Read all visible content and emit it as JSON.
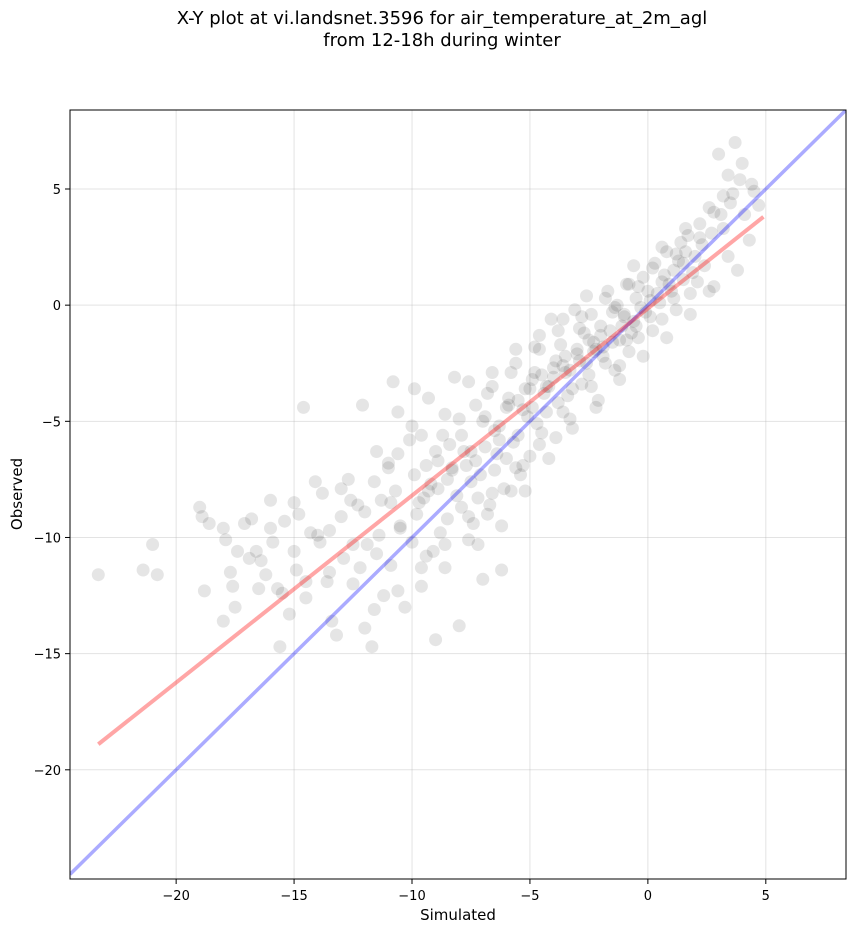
{
  "chart_data": {
    "type": "scatter",
    "title_line1": "X-Y plot at vi.landsnet.3596 for air_temperature_at_2m_agl",
    "title_line2": "from 12-18h during winter",
    "xlabel": "Simulated",
    "ylabel": "Observed",
    "xlim": [
      -24.5,
      8.4
    ],
    "ylim": [
      -24.7,
      8.4
    ],
    "xticks": [
      -20,
      -15,
      -10,
      -5,
      0,
      5
    ],
    "yticks": [
      -20,
      -15,
      -10,
      -5,
      0,
      5
    ],
    "xtick_labels": [
      "−20",
      "−15",
      "−10",
      "−5",
      "0",
      "5"
    ],
    "ytick_labels": [
      "−20",
      "−15",
      "−10",
      "−5",
      "0",
      "5"
    ],
    "grid": true,
    "point_color": "#000000",
    "point_alpha": 0.1,
    "regression_line": {
      "color": "#ff0000",
      "alpha": 0.35,
      "x": [
        -23.3,
        4.9
      ],
      "y": [
        -18.9,
        3.8
      ]
    },
    "identity_line": {
      "color": "#0000ff",
      "alpha": 0.33,
      "x": [
        -24.5,
        8.4
      ],
      "y": [
        -24.5,
        8.4
      ]
    },
    "points": [
      [
        -23.3,
        -11.6
      ],
      [
        -21.4,
        -11.4
      ],
      [
        -21.0,
        -10.3
      ],
      [
        -20.8,
        -11.6
      ],
      [
        -19.0,
        -8.7
      ],
      [
        -18.9,
        -9.1
      ],
      [
        -18.8,
        -12.3
      ],
      [
        -18.6,
        -9.4
      ],
      [
        -18.0,
        -13.6
      ],
      [
        -18.0,
        -9.6
      ],
      [
        -17.9,
        -10.1
      ],
      [
        -17.7,
        -11.5
      ],
      [
        -17.6,
        -12.1
      ],
      [
        -17.4,
        -10.6
      ],
      [
        -17.1,
        -9.4
      ],
      [
        -16.8,
        -9.2
      ],
      [
        -16.6,
        -10.6
      ],
      [
        -16.4,
        -11.0
      ],
      [
        -16.2,
        -11.6
      ],
      [
        -16.0,
        -8.4
      ],
      [
        -15.9,
        -10.2
      ],
      [
        -15.7,
        -12.2
      ],
      [
        -15.6,
        -14.7
      ],
      [
        -15.4,
        -9.3
      ],
      [
        -15.2,
        -13.3
      ],
      [
        -15.0,
        -10.6
      ],
      [
        -14.9,
        -11.4
      ],
      [
        -14.6,
        -4.4
      ],
      [
        -14.5,
        -12.6
      ],
      [
        -14.3,
        -9.8
      ],
      [
        -14.1,
        -7.6
      ],
      [
        -13.9,
        -10.2
      ],
      [
        -13.8,
        -8.1
      ],
      [
        -13.6,
        -11.9
      ],
      [
        -13.4,
        -13.6
      ],
      [
        -13.2,
        -14.2
      ],
      [
        -13.0,
        -9.1
      ],
      [
        -12.9,
        -10.9
      ],
      [
        -12.7,
        -7.5
      ],
      [
        -12.5,
        -12.0
      ],
      [
        -12.3,
        -8.6
      ],
      [
        -12.1,
        -4.3
      ],
      [
        -12.0,
        -13.9
      ],
      [
        -11.9,
        -10.3
      ],
      [
        -11.7,
        -14.7
      ],
      [
        -11.5,
        -6.3
      ],
      [
        -11.3,
        -8.4
      ],
      [
        -11.2,
        -12.5
      ],
      [
        -11.0,
        -7.0
      ],
      [
        -10.9,
        -11.2
      ],
      [
        -10.8,
        -3.3
      ],
      [
        -10.6,
        -4.6
      ],
      [
        -10.5,
        -9.5
      ],
      [
        -10.3,
        -13.0
      ],
      [
        -10.1,
        -5.8
      ],
      [
        -10.0,
        -10.2
      ],
      [
        -9.9,
        -3.6
      ],
      [
        -9.7,
        -8.5
      ],
      [
        -9.6,
        -12.1
      ],
      [
        -9.4,
        -6.9
      ],
      [
        -9.3,
        -4.0
      ],
      [
        -9.1,
        -10.6
      ],
      [
        -9.0,
        -14.4
      ],
      [
        -8.9,
        -7.9
      ],
      [
        -8.7,
        -5.6
      ],
      [
        -8.6,
        -11.3
      ],
      [
        -8.5,
        -9.2
      ],
      [
        -8.3,
        -7.1
      ],
      [
        -8.2,
        -3.1
      ],
      [
        -8.0,
        -13.8
      ],
      [
        -7.9,
        -8.7
      ],
      [
        -7.8,
        -6.3
      ],
      [
        -7.6,
        -10.1
      ],
      [
        -7.5,
        -7.6
      ],
      [
        -7.3,
        -4.3
      ],
      [
        -7.2,
        -8.3
      ],
      [
        -7.0,
        -11.8
      ],
      [
        -6.9,
        -6.1
      ],
      [
        -6.8,
        -9.0
      ],
      [
        -6.6,
        -3.5
      ],
      [
        -6.5,
        -7.1
      ],
      [
        -6.3,
        -5.2
      ],
      [
        -6.2,
        -11.4
      ],
      [
        -6.0,
        -6.6
      ],
      [
        -5.9,
        -4.3
      ],
      [
        -5.8,
        -8.0
      ],
      [
        -5.6,
        -2.5
      ],
      [
        -5.5,
        -5.6
      ],
      [
        -5.4,
        -7.3
      ],
      [
        -5.2,
        -3.6
      ],
      [
        -5.1,
        -4.8
      ],
      [
        -5.0,
        -6.5
      ],
      [
        -4.8,
        -2.9
      ],
      [
        -4.7,
        -5.1
      ],
      [
        -4.6,
        -1.9
      ],
      [
        -4.4,
        -3.8
      ],
      [
        -4.3,
        -4.6
      ],
      [
        -4.1,
        -0.6
      ],
      [
        -4.0,
        -3.1
      ],
      [
        -3.9,
        -5.7
      ],
      [
        -3.7,
        -1.7
      ],
      [
        -3.6,
        -2.6
      ],
      [
        -3.4,
        -3.9
      ],
      [
        -3.3,
        -4.9
      ],
      [
        -3.1,
        -0.2
      ],
      [
        -3.0,
        -2.1
      ],
      [
        -2.8,
        -3.4
      ],
      [
        -2.7,
        -1.2
      ],
      [
        -2.6,
        -2.5
      ],
      [
        -2.4,
        -0.4
      ],
      [
        -2.3,
        -1.6
      ],
      [
        -2.1,
        -4.1
      ],
      [
        -2.0,
        -0.9
      ],
      [
        -1.9,
        -2.2
      ],
      [
        -1.7,
        0.6
      ],
      [
        -1.6,
        -1.1
      ],
      [
        -1.4,
        -2.8
      ],
      [
        -1.3,
        0.0
      ],
      [
        -1.2,
        -1.5
      ],
      [
        -1.0,
        -0.5
      ],
      [
        -0.9,
        0.9
      ],
      [
        -0.8,
        -2.0
      ],
      [
        -0.6,
        -0.7
      ],
      [
        -0.5,
        0.3
      ],
      [
        -0.4,
        -1.4
      ],
      [
        -0.2,
        1.2
      ],
      [
        -0.1,
        -0.3
      ],
      [
        0.0,
        0.6
      ],
      [
        0.2,
        -1.1
      ],
      [
        0.3,
        1.8
      ],
      [
        0.5,
        0.1
      ],
      [
        0.6,
        -0.6
      ],
      [
        0.8,
        2.3
      ],
      [
        0.9,
        0.9
      ],
      [
        1.1,
        1.5
      ],
      [
        1.2,
        -0.2
      ],
      [
        1.4,
        2.7
      ],
      [
        1.5,
        1.1
      ],
      [
        1.7,
        3.0
      ],
      [
        1.8,
        0.5
      ],
      [
        2.0,
        2.1
      ],
      [
        2.2,
        3.5
      ],
      [
        2.4,
        1.7
      ],
      [
        2.6,
        0.6
      ],
      [
        2.8,
        4.0
      ],
      [
        3.0,
        6.5
      ],
      [
        3.2,
        3.3
      ],
      [
        3.4,
        2.1
      ],
      [
        3.6,
        4.8
      ],
      [
        3.7,
        7.0
      ],
      [
        3.9,
        5.4
      ],
      [
        4.1,
        3.9
      ],
      [
        4.3,
        2.8
      ],
      [
        4.5,
        4.9
      ],
      [
        4.7,
        4.3
      ],
      [
        -16.9,
        -10.9
      ],
      [
        -14.8,
        -9.0
      ],
      [
        -13.5,
        -9.7
      ],
      [
        -12.2,
        -11.3
      ],
      [
        -11.4,
        -9.9
      ],
      [
        -10.7,
        -8.0
      ],
      [
        -9.8,
        -9.0
      ],
      [
        -9.2,
        -7.7
      ],
      [
        -8.8,
        -9.8
      ],
      [
        -8.1,
        -8.2
      ],
      [
        -7.7,
        -6.9
      ],
      [
        -7.4,
        -9.4
      ],
      [
        -7.1,
        -7.3
      ],
      [
        -6.7,
        -8.6
      ],
      [
        -6.4,
        -6.4
      ],
      [
        -6.1,
        -7.9
      ],
      [
        -5.7,
        -5.9
      ],
      [
        -5.3,
        -6.9
      ],
      [
        -4.9,
        -4.4
      ],
      [
        -4.5,
        -5.5
      ],
      [
        -4.2,
        -3.5
      ],
      [
        -3.8,
        -4.2
      ],
      [
        -3.5,
        -2.9
      ],
      [
        -3.2,
        -3.6
      ],
      [
        -2.9,
        -2.4
      ],
      [
        -2.5,
        -3.0
      ],
      [
        -2.2,
        -1.9
      ],
      [
        -1.8,
        -2.5
      ],
      [
        -1.5,
        -1.6
      ],
      [
        -1.1,
        -0.9
      ],
      [
        -0.7,
        -1.2
      ],
      [
        -0.3,
        -0.1
      ],
      [
        0.1,
        0.2
      ],
      [
        0.4,
        0.5
      ],
      [
        0.7,
        1.3
      ],
      [
        1.0,
        0.6
      ],
      [
        1.3,
        1.9
      ],
      [
        1.6,
        2.3
      ],
      [
        1.9,
        1.4
      ],
      [
        2.3,
        2.6
      ],
      [
        2.7,
        3.1
      ],
      [
        3.1,
        3.9
      ],
      [
        3.5,
        4.4
      ],
      [
        -8.4,
        -6.0
      ],
      [
        -7.0,
        -5.0
      ],
      [
        -6.0,
        -4.4
      ],
      [
        -5.0,
        -3.6
      ],
      [
        -4.0,
        -2.7
      ],
      [
        -3.0,
        -1.9
      ],
      [
        -2.0,
        -1.3
      ],
      [
        -1.0,
        -0.4
      ],
      [
        -0.5,
        -0.9
      ],
      [
        -1.5,
        -0.3
      ],
      [
        -2.5,
        -1.5
      ],
      [
        -3.5,
        -2.2
      ],
      [
        -4.5,
        -3.0
      ],
      [
        -5.5,
        -4.1
      ],
      [
        -6.5,
        -5.4
      ],
      [
        -7.5,
        -6.3
      ],
      [
        -8.5,
        -7.5
      ],
      [
        -9.5,
        -8.3
      ],
      [
        -10.5,
        -9.6
      ],
      [
        -11.5,
        -10.7
      ],
      [
        -12.5,
        -10.3
      ],
      [
        -13.5,
        -11.5
      ],
      [
        -14.5,
        -11.9
      ],
      [
        -15.5,
        -12.4
      ],
      [
        -16.5,
        -12.2
      ],
      [
        -17.5,
        -13.0
      ],
      [
        -13.0,
        -7.9
      ],
      [
        -11.0,
        -6.8
      ],
      [
        -10.0,
        -5.2
      ],
      [
        -9.0,
        -6.3
      ],
      [
        -12.0,
        -8.9
      ],
      [
        -14.0,
        -9.9
      ],
      [
        -15.0,
        -8.5
      ],
      [
        -16.0,
        -9.6
      ],
      [
        -8.0,
        -4.9
      ],
      [
        -6.8,
        -3.8
      ],
      [
        -5.8,
        -2.9
      ],
      [
        -4.8,
        -1.8
      ],
      [
        -3.8,
        -1.1
      ],
      [
        -2.8,
        -0.5
      ],
      [
        -1.8,
        0.3
      ],
      [
        -0.8,
        0.9
      ],
      [
        0.2,
        1.6
      ],
      [
        1.2,
        2.2
      ],
      [
        2.2,
        2.9
      ],
      [
        3.2,
        4.7
      ],
      [
        4.0,
        6.1
      ],
      [
        4.4,
        5.2
      ],
      [
        -1.2,
        -2.6
      ],
      [
        -2.4,
        -3.5
      ],
      [
        -3.6,
        -4.6
      ],
      [
        -4.6,
        -6.0
      ],
      [
        -5.6,
        -7.0
      ],
      [
        -6.6,
        -8.1
      ],
      [
        -7.6,
        -9.1
      ],
      [
        -8.6,
        -10.3
      ],
      [
        -9.6,
        -11.3
      ],
      [
        -10.6,
        -12.3
      ],
      [
        -11.6,
        -13.1
      ],
      [
        -9.4,
        -10.8
      ],
      [
        -7.2,
        -10.3
      ],
      [
        -6.2,
        -9.5
      ],
      [
        -5.2,
        -8.0
      ],
      [
        -4.2,
        -6.6
      ],
      [
        -3.2,
        -5.3
      ],
      [
        -2.2,
        -4.4
      ],
      [
        -1.2,
        -3.2
      ],
      [
        -0.2,
        -2.2
      ],
      [
        0.8,
        -1.4
      ],
      [
        1.8,
        -0.4
      ],
      [
        2.8,
        0.8
      ],
      [
        3.8,
        1.5
      ],
      [
        -0.6,
        1.7
      ],
      [
        0.6,
        2.5
      ],
      [
        1.6,
        3.3
      ],
      [
        2.6,
        4.2
      ],
      [
        3.4,
        5.6
      ],
      [
        -2.6,
        0.4
      ],
      [
        -3.6,
        -0.6
      ],
      [
        -4.6,
        -1.3
      ],
      [
        -5.6,
        -1.9
      ],
      [
        -6.6,
        -2.9
      ],
      [
        -7.6,
        -3.3
      ],
      [
        -8.6,
        -4.7
      ],
      [
        -9.6,
        -5.6
      ],
      [
        -10.6,
        -6.4
      ],
      [
        -11.6,
        -7.6
      ],
      [
        -12.6,
        -8.4
      ],
      [
        -2.9,
        -1.0
      ],
      [
        -1.9,
        -1.8
      ],
      [
        -0.9,
        -1.5
      ],
      [
        0.1,
        -0.5
      ],
      [
        1.1,
        0.3
      ],
      [
        2.1,
        1.0
      ],
      [
        -3.9,
        -2.4
      ],
      [
        -4.9,
        -3.2
      ],
      [
        -5.9,
        -4.0
      ],
      [
        -6.9,
        -4.8
      ],
      [
        -7.9,
        -5.6
      ],
      [
        -8.9,
        -6.7
      ],
      [
        -9.9,
        -7.3
      ],
      [
        -10.9,
        -8.5
      ],
      [
        -1.4,
        -0.1
      ],
      [
        -0.4,
        0.8
      ],
      [
        0.6,
        1.0
      ],
      [
        1.5,
        1.8
      ],
      [
        -2.3,
        -2.0
      ],
      [
        -3.3,
        -2.8
      ],
      [
        -4.3,
        -3.5
      ],
      [
        -5.3,
        -4.5
      ],
      [
        -6.3,
        -5.8
      ],
      [
        -7.3,
        -6.7
      ],
      [
        -8.3,
        -7.0
      ],
      [
        -9.3,
        -8.0
      ]
    ]
  }
}
